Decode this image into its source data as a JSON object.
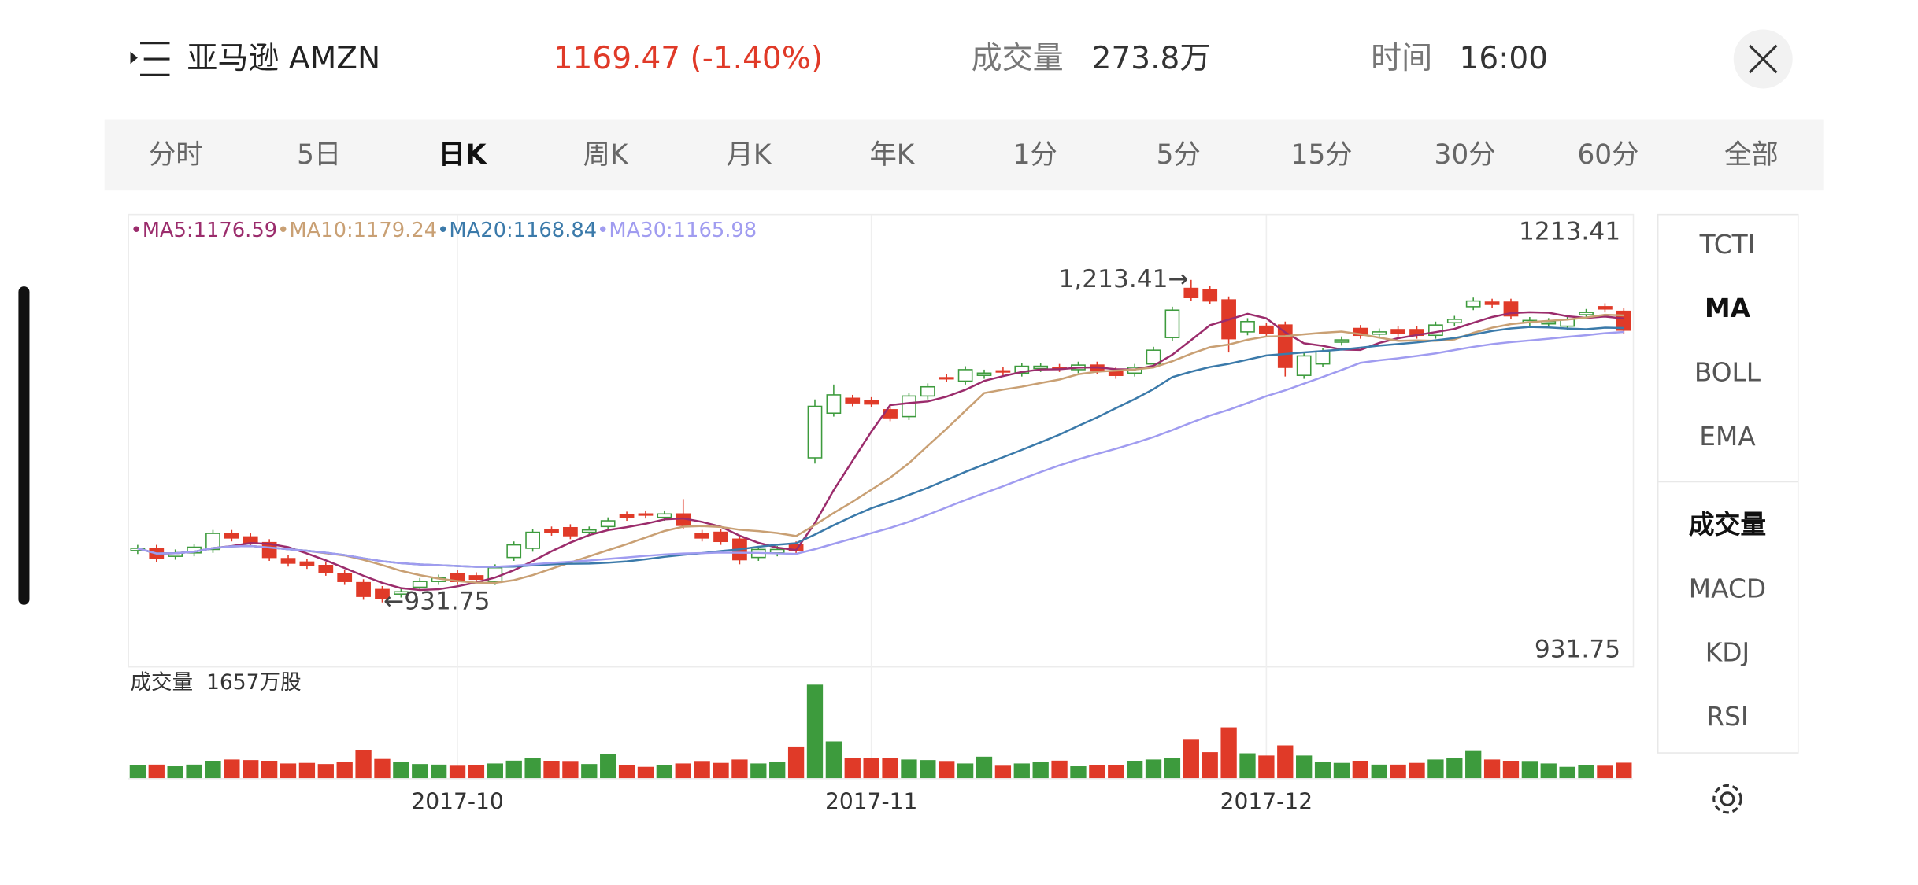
{
  "header": {
    "name": "亚马逊 AMZN",
    "price": "1169.47 (-1.40%)",
    "volume_label": "成交量",
    "volume": "273.8万",
    "time_label": "时间",
    "time": "16:00"
  },
  "tabs": [
    "分时",
    "5日",
    "日K",
    "周K",
    "月K",
    "年K",
    "1分",
    "5分",
    "15分",
    "30分",
    "60分",
    "全部"
  ],
  "active_tab": 2,
  "indicators": [
    "TCTI",
    "MA",
    "BOLL",
    "EMA"
  ],
  "active_indicator": 1,
  "sub_indicators": [
    "成交量",
    "MACD",
    "KDJ",
    "RSI"
  ],
  "active_sub_indicator": 0,
  "chart_data": {
    "type": "candlestick",
    "ylim": [
      876,
      1270
    ],
    "high_label": "1213.41",
    "low_label": "931.75",
    "high_annotation": "1,213.41→",
    "low_annotation": "←931.75",
    "xticks": [
      {
        "value": 17,
        "label": "2017-10"
      },
      {
        "value": 39,
        "label": "2017-11"
      },
      {
        "value": 60,
        "label": "2017-12"
      }
    ],
    "up_color": "#3d9b3d",
    "down_color": "#e03a28",
    "ma": [
      {
        "name": "•MA5:1176.59",
        "period": 5,
        "color": "#9b2c6c"
      },
      {
        "name": "•MA10:1179.24",
        "period": 10,
        "color": "#c9a074"
      },
      {
        "name": "•MA20:1168.84",
        "period": 20,
        "color": "#3b7aaa"
      },
      {
        "name": "•MA30:1165.98",
        "period": 30,
        "color": "#a09cf0"
      }
    ],
    "open": [
      977,
      979,
      972,
      975,
      978,
      992,
      989,
      984,
      970,
      967,
      964,
      957,
      949,
      943,
      939,
      945,
      950,
      957,
      955,
      950,
      971,
      979,
      995,
      997,
      993,
      998,
      1008,
      1009,
      1006,
      1009,
      992,
      993,
      987,
      971,
      975,
      982,
      1058,
      1097,
      1110,
      1108,
      1100,
      1094,
      1112,
      1128,
      1125,
      1130,
      1134,
      1132,
      1136,
      1137,
      1135,
      1139,
      1134,
      1132,
      1140,
      1163,
      1206,
      1205,
      1196,
      1168,
      1173,
      1174,
      1130,
      1140,
      1159,
      1171,
      1166,
      1170,
      1170,
      1165,
      1176,
      1190,
      1194,
      1194,
      1176,
      1175,
      1173,
      1183,
      1190,
      1186
    ],
    "high": [
      982,
      982,
      978,
      983,
      995,
      995,
      992,
      987,
      973,
      970,
      967,
      960,
      952,
      946,
      944,
      953,
      956,
      960,
      958,
      965,
      985,
      996,
      998,
      1000,
      998,
      1006,
      1011,
      1012,
      1012,
      1022,
      995,
      996,
      990,
      981,
      981,
      985,
      1109,
      1122,
      1113,
      1111,
      1103,
      1115,
      1123,
      1131,
      1138,
      1135,
      1137,
      1141,
      1141,
      1140,
      1142,
      1142,
      1137,
      1140,
      1155,
      1190,
      1213.41,
      1208,
      1199,
      1180,
      1176,
      1177,
      1150,
      1154,
      1164,
      1174,
      1171,
      1173,
      1173,
      1177,
      1182,
      1198,
      1197,
      1197,
      1181,
      1180,
      1182,
      1188,
      1193,
      1189
    ],
    "low": [
      974,
      967,
      969,
      972,
      975,
      985,
      980,
      968,
      963,
      961,
      955,
      947,
      934,
      931.75,
      936,
      942,
      947,
      947,
      949,
      947,
      968,
      976,
      990,
      987,
      990,
      995,
      1003,
      1005,
      1003,
      996,
      985,
      982,
      965,
      968,
      972,
      974,
      1053,
      1094,
      1103,
      1102,
      1090,
      1091,
      1109,
      1124,
      1122,
      1127,
      1130,
      1129,
      1133,
      1133,
      1132,
      1131,
      1127,
      1129,
      1137,
      1160,
      1195,
      1192,
      1150,
      1165,
      1164,
      1129,
      1127,
      1137,
      1156,
      1162,
      1163,
      1164,
      1162,
      1162,
      1173,
      1187,
      1189,
      1179,
      1173,
      1172,
      1170,
      1180,
      1185,
      1166
    ],
    "close": [
      979,
      970,
      975,
      980,
      992,
      988,
      983,
      971,
      966,
      964,
      958,
      950,
      937,
      935,
      941,
      950,
      953,
      950,
      952,
      962,
      982,
      993,
      993,
      990,
      995,
      1003,
      1006,
      1008,
      1009,
      999,
      988,
      985,
      969,
      978,
      978,
      977,
      1103,
      1113,
      1106,
      1105,
      1093,
      1112,
      1120,
      1127,
      1135,
      1132,
      1133,
      1138,
      1138,
      1136,
      1139,
      1134,
      1130,
      1137,
      1152,
      1187,
      1198,
      1195,
      1162,
      1177,
      1167,
      1137,
      1147,
      1151,
      1161,
      1165,
      1168,
      1167,
      1165,
      1174,
      1179,
      1195,
      1192,
      1182,
      1178,
      1177,
      1179,
      1185,
      1188,
      1169.47
    ],
    "volume_title": "成交量  1657万股",
    "volume_ylim": [
      0,
      1657
    ],
    "volume": [
      230,
      240,
      210,
      240,
      300,
      330,
      320,
      300,
      260,
      270,
      250,
      280,
      500,
      340,
      280,
      250,
      240,
      220,
      230,
      260,
      310,
      350,
      300,
      290,
      250,
      420,
      230,
      200,
      230,
      260,
      290,
      270,
      330,
      260,
      280,
      560,
      1657,
      650,
      360,
      360,
      350,
      330,
      320,
      290,
      260,
      380,
      220,
      260,
      280,
      310,
      210,
      230,
      230,
      300,
      330,
      350,
      680,
      460,
      900,
      440,
      400,
      580,
      400,
      280,
      270,
      300,
      240,
      240,
      270,
      330,
      360,
      480,
      330,
      300,
      290,
      260,
      200,
      230,
      220,
      273.8
    ]
  }
}
